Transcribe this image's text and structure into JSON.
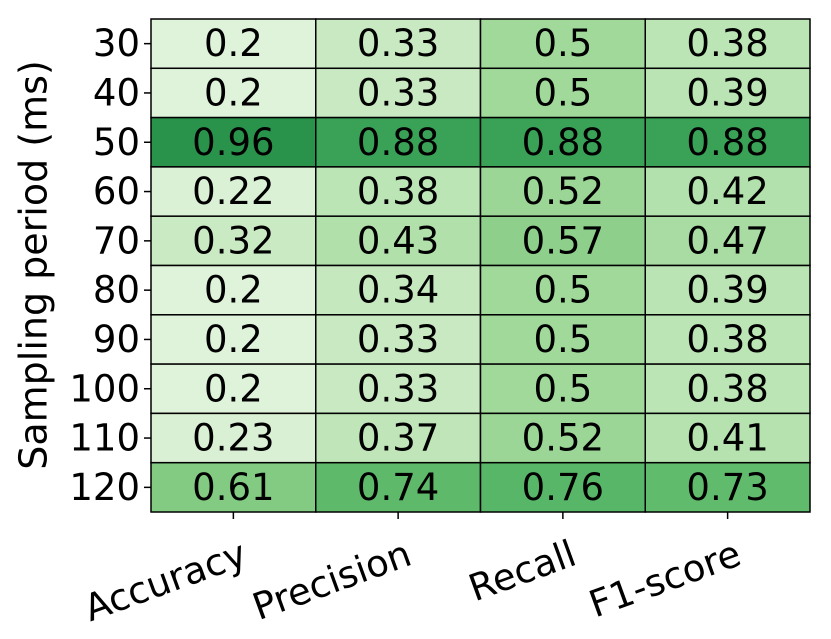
{
  "chart_data": {
    "type": "heatmap",
    "y_label": "Sampling period (ms)",
    "x_categories": [
      "Accuracy",
      "Precision",
      "Recall",
      "F1-score"
    ],
    "y_categories": [
      "30",
      "40",
      "50",
      "60",
      "70",
      "80",
      "90",
      "100",
      "110",
      "120"
    ],
    "values": [
      [
        0.2,
        0.33,
        0.5,
        0.38
      ],
      [
        0.2,
        0.33,
        0.5,
        0.39
      ],
      [
        0.96,
        0.88,
        0.88,
        0.88
      ],
      [
        0.22,
        0.38,
        0.52,
        0.42
      ],
      [
        0.32,
        0.43,
        0.57,
        0.47
      ],
      [
        0.2,
        0.34,
        0.5,
        0.39
      ],
      [
        0.2,
        0.33,
        0.5,
        0.38
      ],
      [
        0.2,
        0.33,
        0.5,
        0.38
      ],
      [
        0.23,
        0.37,
        0.52,
        0.41
      ],
      [
        0.61,
        0.74,
        0.76,
        0.73
      ]
    ],
    "cmap": [
      "#f7fcf5",
      "#e5f5e0",
      "#c7e9c0",
      "#a1d99b",
      "#74c476",
      "#41ab5d",
      "#238b45"
    ],
    "clim": [
      0,
      1
    ]
  }
}
